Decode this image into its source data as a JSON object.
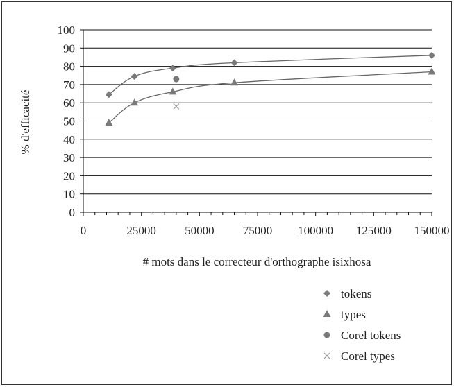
{
  "chart_data": {
    "type": "line",
    "xlabel": "# mots dans le correcteur d'orthographe isixhosa",
    "ylabel": "% d'efficacité",
    "xlim": [
      0,
      150000
    ],
    "ylim": [
      0,
      100
    ],
    "x_ticks": [
      "0",
      "25000",
      "50000",
      "75000",
      "100000",
      "125000",
      "150000"
    ],
    "y_ticks": [
      "0",
      "10",
      "20",
      "30",
      "40",
      "50",
      "60",
      "70",
      "80",
      "90",
      "100"
    ],
    "grid": "horizontal",
    "legend_position": "bottom-right",
    "series": [
      {
        "name": "tokens",
        "marker": "diamond",
        "line": true,
        "points": [
          {
            "x": 11000,
            "y": 64.5
          },
          {
            "x": 22000,
            "y": 74.5
          },
          {
            "x": 38500,
            "y": 79
          },
          {
            "x": 65000,
            "y": 82
          },
          {
            "x": 150000,
            "y": 86
          }
        ]
      },
      {
        "name": "types",
        "marker": "triangle",
        "line": true,
        "points": [
          {
            "x": 11000,
            "y": 49
          },
          {
            "x": 22000,
            "y": 60
          },
          {
            "x": 38500,
            "y": 66
          },
          {
            "x": 65000,
            "y": 71
          },
          {
            "x": 150000,
            "y": 77
          }
        ]
      },
      {
        "name": "Corel tokens",
        "marker": "circle",
        "line": false,
        "points": [
          {
            "x": 40000,
            "y": 73
          }
        ]
      },
      {
        "name": "Corel types",
        "marker": "x",
        "line": false,
        "points": [
          {
            "x": 40000,
            "y": 58
          }
        ]
      }
    ]
  }
}
